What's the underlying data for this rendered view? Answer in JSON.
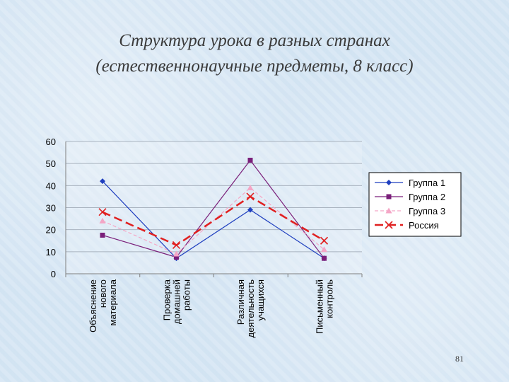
{
  "slide": {
    "title_line1": "Структура урока в разных странах",
    "title_line2": "(естественнонаучные предметы, 8 класс)",
    "page_number": "81"
  },
  "chart_data": {
    "type": "line",
    "categories": [
      [
        "Объяснение",
        "нового",
        "материала"
      ],
      [
        "Проверка",
        "домашней",
        "работы"
      ],
      [
        "Различная",
        "деятельность",
        "учащихся"
      ],
      [
        "Письменный",
        "контроль"
      ]
    ],
    "ylim": [
      0,
      60
    ],
    "yticks": [
      0,
      10,
      20,
      30,
      40,
      50,
      60
    ],
    "grid": true,
    "legend_position": "right",
    "series": [
      {
        "name": "Группа 1",
        "values": [
          42,
          7,
          29,
          7
        ],
        "color": "#1f3fbf",
        "marker": "diamond",
        "dash": "solid"
      },
      {
        "name": "Группа 2",
        "values": [
          17.5,
          7.5,
          51.5,
          7
        ],
        "color": "#7a1f7a",
        "marker": "square",
        "dash": "solid"
      },
      {
        "name": "Группа 3",
        "values": [
          24,
          9,
          39,
          11
        ],
        "color": "#f4a6c6",
        "marker": "triangle",
        "dash": "dashed"
      },
      {
        "name": "Россия",
        "values": [
          28,
          13,
          35,
          15
        ],
        "color": "#e02020",
        "marker": "x",
        "dash": "longdash"
      }
    ]
  }
}
